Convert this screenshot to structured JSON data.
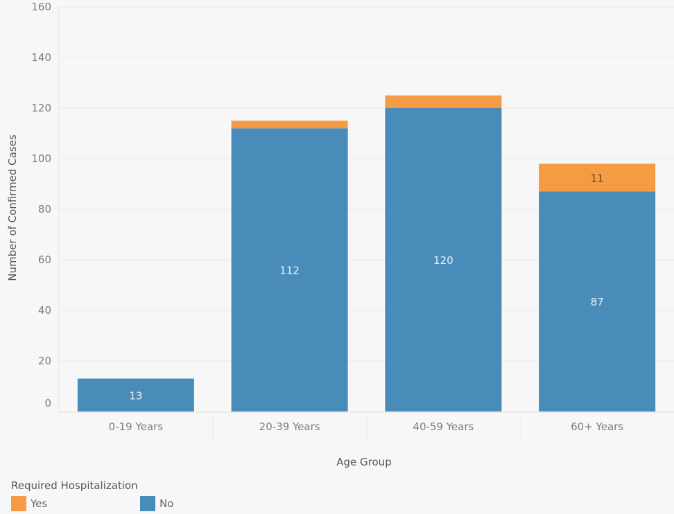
{
  "chart_data": {
    "type": "bar",
    "stacked": true,
    "categories": [
      "0-19 Years",
      "20-39 Years",
      "40-59 Years",
      "60+ Years"
    ],
    "series": [
      {
        "name": "No",
        "values": [
          13,
          112,
          120,
          87
        ],
        "color": "#4a8cb9"
      },
      {
        "name": "Yes",
        "values": [
          0,
          3,
          5,
          11
        ],
        "color": "#f59b43"
      }
    ],
    "data_labels": [
      {
        "series": "No",
        "category": "0-19 Years",
        "text": "13"
      },
      {
        "series": "No",
        "category": "20-39 Years",
        "text": "112"
      },
      {
        "series": "No",
        "category": "40-59 Years",
        "text": "120"
      },
      {
        "series": "No",
        "category": "60+ Years",
        "text": "87"
      },
      {
        "series": "Yes",
        "category": "60+ Years",
        "text": "11"
      }
    ],
    "xlabel": "Age Group",
    "ylabel": "Number of Confirmed Cases",
    "ylim": [
      0,
      160
    ],
    "yticks": [
      0,
      20,
      40,
      60,
      80,
      100,
      120,
      140,
      160
    ],
    "grid": true,
    "legend": {
      "title": "Required Hospitalization",
      "placement": "bottom-left",
      "items": [
        {
          "label": "Yes",
          "color": "#f59b43"
        },
        {
          "label": "No",
          "color": "#4a8cb9"
        }
      ]
    }
  }
}
